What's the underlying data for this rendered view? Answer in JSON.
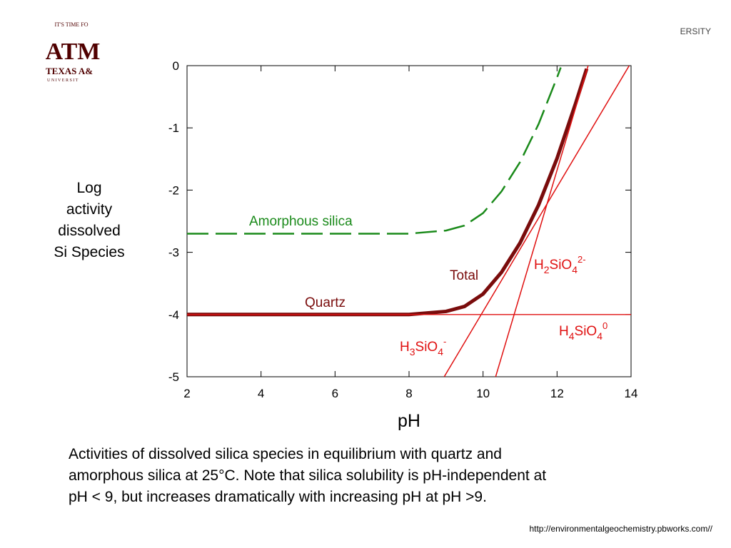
{
  "header": {
    "logo_tagline": "IT'S TIME FO",
    "logo_mark": "ATM",
    "logo_name": "TEXAS A&",
    "logo_sub": "U N I V E R S I T",
    "corner_text": "ERSITY"
  },
  "chart_data": {
    "type": "line",
    "ylabel": [
      "Log",
      "activity",
      "dissolved",
      "Si Species"
    ],
    "xlabel": "pH",
    "xlim": [
      2,
      14
    ],
    "ylim": [
      -5,
      0
    ],
    "xticks": [
      2,
      4,
      6,
      8,
      10,
      12,
      14
    ],
    "yticks": [
      0,
      -1,
      -2,
      -3,
      -4,
      -5
    ],
    "series": [
      {
        "name": "Amorphous silica",
        "color": "#1a8a1a",
        "line_style": "dashed",
        "x": [
          2,
          4,
          6,
          8,
          9,
          9.5,
          10,
          10.5,
          11,
          11.5,
          12,
          12.1
        ],
        "values": [
          -2.7,
          -2.7,
          -2.7,
          -2.7,
          -2.65,
          -2.57,
          -2.37,
          -2.02,
          -1.55,
          -0.94,
          -0.19,
          -0.03
        ]
      },
      {
        "name": "Total",
        "color": "#7a0c0c",
        "line_style": "solid",
        "x": [
          2,
          4,
          6,
          8,
          9,
          9.5,
          10,
          10.5,
          11,
          11.5,
          12,
          12.5,
          12.8
        ],
        "values": [
          -4,
          -4,
          -4,
          -4,
          -3.95,
          -3.87,
          -3.67,
          -3.32,
          -2.85,
          -2.24,
          -1.49,
          -0.61,
          -0.05
        ]
      },
      {
        "name": "H4SiO4",
        "color": "#e01010",
        "line_style": "solid",
        "x": [
          2,
          14
        ],
        "values": [
          -4,
          -4
        ]
      },
      {
        "name": "H3SiO4",
        "color": "#e01010",
        "line_style": "solid",
        "x": [
          8.95,
          13.95
        ],
        "values": [
          -5,
          0
        ]
      },
      {
        "name": "H2SiO4",
        "color": "#e01010",
        "line_style": "solid",
        "x": [
          10.34,
          12.84
        ],
        "values": [
          -5,
          0
        ]
      }
    ],
    "annotations": [
      {
        "color": "#1a8a1a",
        "segments": [
          {
            "base": "Amorphous silica"
          }
        ]
      },
      {
        "color": "#7a0c0c",
        "segments": [
          {
            "base": "Quartz"
          }
        ]
      },
      {
        "color": "#7a0c0c",
        "segments": [
          {
            "base": "Total"
          }
        ]
      },
      {
        "color": "#e01010",
        "segments": [
          {
            "base": "H"
          },
          {
            "sub": "2"
          },
          {
            "base": "SiO"
          },
          {
            "sub": "4"
          },
          {
            "sup": "2-"
          }
        ]
      },
      {
        "color": "#e01010",
        "segments": [
          {
            "base": "H"
          },
          {
            "sub": "4"
          },
          {
            "base": "SiO"
          },
          {
            "sub": "4"
          },
          {
            "sup": "0"
          }
        ]
      },
      {
        "color": "#e01010",
        "segments": [
          {
            "base": "H"
          },
          {
            "sub": "3"
          },
          {
            "base": "SiO"
          },
          {
            "sub": "4"
          },
          {
            "sup": "-"
          }
        ]
      }
    ]
  },
  "caption": [
    "Activities of dissolved silica species in equilibrium with quartz and",
    "amorphous silica at 25°C. Note that silica solubility is pH-independent at",
    "pH < 9, but increases dramatically with increasing pH at pH >9."
  ],
  "source": "http://environmentalgeochemistry.pbworks.com//"
}
